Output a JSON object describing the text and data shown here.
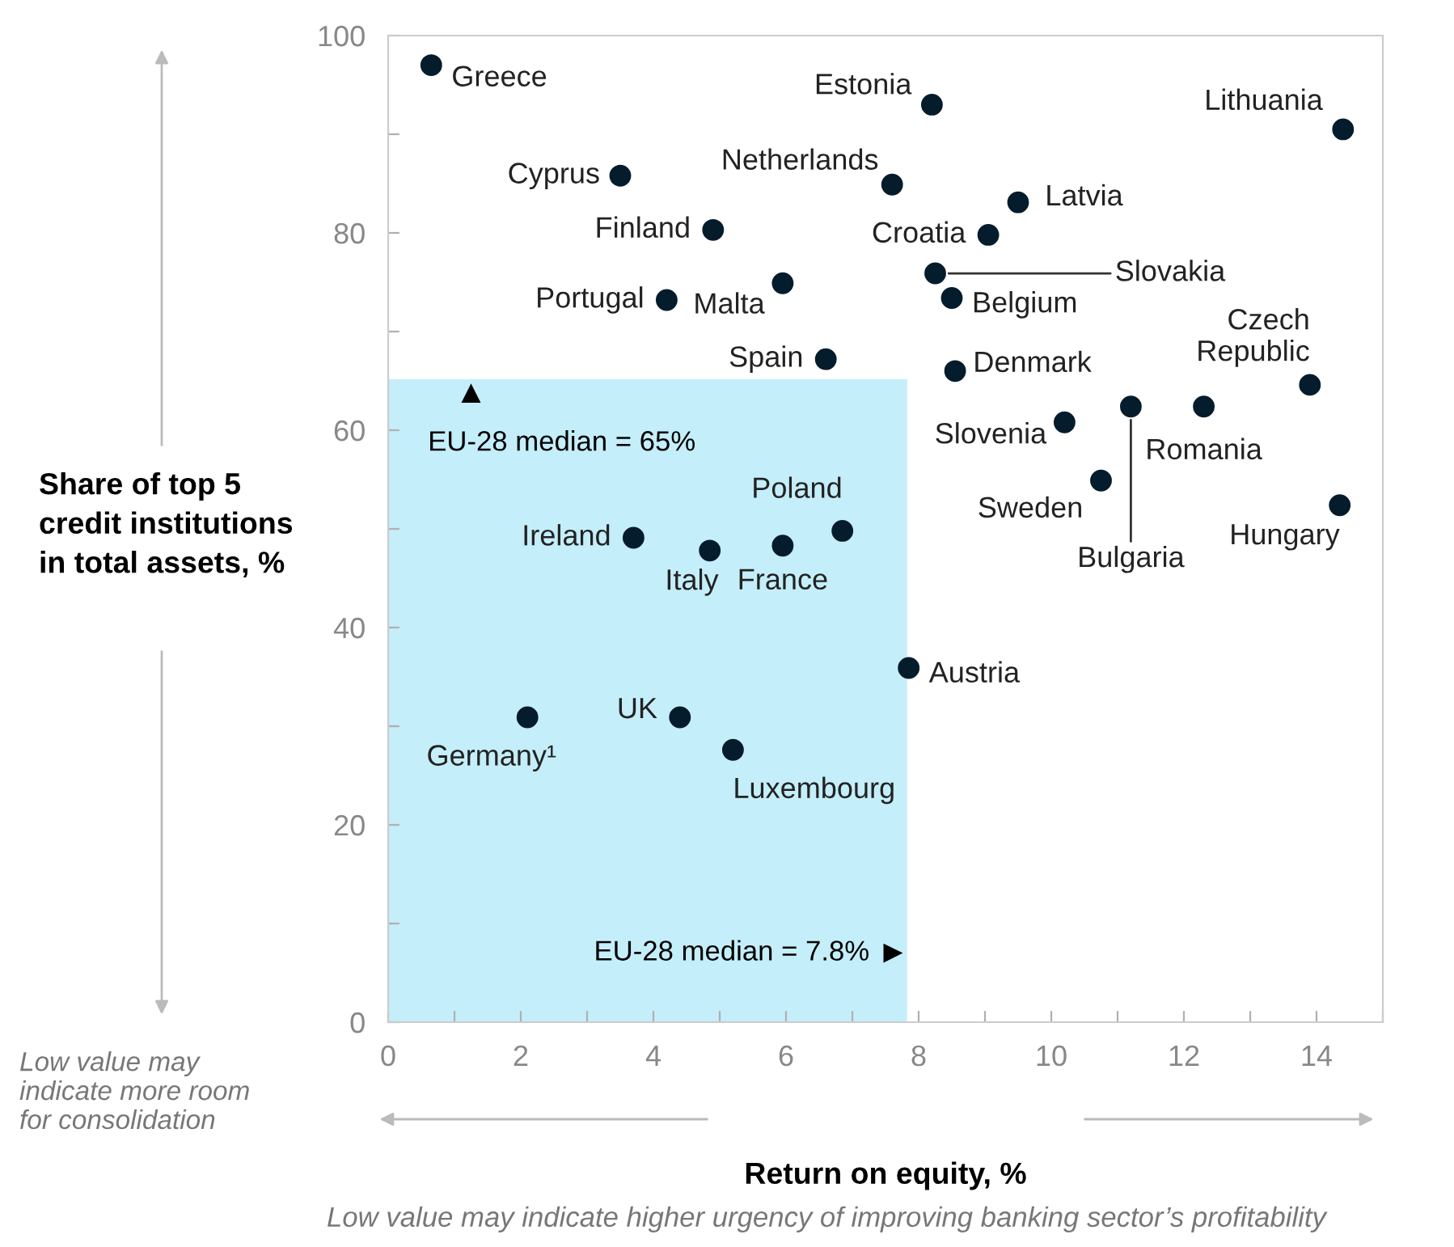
{
  "chart_data": {
    "type": "scatter",
    "xlabel": "Return on equity, %",
    "ylabel": "Share of top 5 credit institutions in total assets, %",
    "xlim": [
      0,
      15
    ],
    "ylim": [
      0,
      100
    ],
    "xticks": [
      0,
      {
        "value": 1,
        "label": null
      },
      2,
      {
        "value": 3,
        "label": null
      },
      4,
      {
        "value": 5,
        "label": null
      },
      6,
      {
        "value": 7,
        "label": null
      },
      8,
      {
        "value": 9,
        "label": null
      },
      10,
      {
        "value": 11,
        "label": null
      },
      12,
      {
        "value": 13,
        "label": null
      },
      14,
      {
        "value": 15,
        "label": null
      }
    ],
    "yticks": [
      0,
      {
        "value": 10,
        "label": null
      },
      20,
      {
        "value": 30,
        "label": null
      },
      40,
      {
        "value": 50,
        "label": null
      },
      60,
      {
        "value": 70,
        "label": null
      },
      80,
      {
        "value": 90,
        "label": null
      },
      100
    ],
    "grid": false,
    "legend": false,
    "marker": "circle",
    "series": [
      {
        "name": "Greece",
        "color": "#051c2c",
        "x": [
          0.65
        ],
        "values": [
          97
        ]
      },
      {
        "name": "Estonia",
        "color": "#051c2c",
        "x": [
          8.2
        ],
        "values": [
          93
        ]
      },
      {
        "name": "Lithuania",
        "color": "#051c2c",
        "x": [
          14.4
        ],
        "values": [
          90.5
        ]
      },
      {
        "name": "Cyprus",
        "color": "#051c2c",
        "x": [
          3.5
        ],
        "values": [
          85.8
        ]
      },
      {
        "name": "Netherlands",
        "color": "#051c2c",
        "x": [
          7.6
        ],
        "values": [
          84.9
        ]
      },
      {
        "name": "Latvia",
        "color": "#051c2c",
        "x": [
          9.5
        ],
        "values": [
          83.1
        ]
      },
      {
        "name": "Finland",
        "color": "#051c2c",
        "x": [
          4.9
        ],
        "values": [
          80.3
        ]
      },
      {
        "name": "Croatia",
        "color": "#051c2c",
        "x": [
          9.05
        ],
        "values": [
          79.8
        ]
      },
      {
        "name": "Slovakia",
        "color": "#051c2c",
        "x": [
          8.25
        ],
        "values": [
          75.9
        ]
      },
      {
        "name": "Portugal",
        "color": "#051c2c",
        "x": [
          4.2
        ],
        "values": [
          73.2
        ]
      },
      {
        "name": "Malta",
        "color": "#051c2c",
        "x": [
          5.95
        ],
        "values": [
          74.9
        ]
      },
      {
        "name": "Belgium",
        "color": "#051c2c",
        "x": [
          8.5
        ],
        "values": [
          73.4
        ]
      },
      {
        "name": "Spain",
        "color": "#051c2c",
        "x": [
          6.6
        ],
        "values": [
          67.2
        ]
      },
      {
        "name": "Denmark",
        "color": "#051c2c",
        "x": [
          8.55
        ],
        "values": [
          66
        ]
      },
      {
        "name": "Czech\nRepublic",
        "color": "#051c2c",
        "x": [
          13.9
        ],
        "values": [
          64.6
        ]
      },
      {
        "name": "Bulgaria",
        "color": "#051c2c",
        "x": [
          11.2
        ],
        "values": [
          62.4
        ]
      },
      {
        "name": "Romania",
        "color": "#051c2c",
        "x": [
          12.3
        ],
        "values": [
          62.4
        ]
      },
      {
        "name": "Slovenia",
        "color": "#051c2c",
        "x": [
          10.2
        ],
        "values": [
          60.8
        ]
      },
      {
        "name": "Sweden",
        "color": "#051c2c",
        "x": [
          10.75
        ],
        "values": [
          54.9
        ]
      },
      {
        "name": "Hungary",
        "color": "#051c2c",
        "x": [
          14.35
        ],
        "values": [
          52.4
        ]
      },
      {
        "name": "Poland",
        "color": "#051c2c",
        "x": [
          6.85
        ],
        "values": [
          49.8
        ]
      },
      {
        "name": "Ireland",
        "color": "#051c2c",
        "x": [
          3.7
        ],
        "values": [
          49.1
        ]
      },
      {
        "name": "France",
        "color": "#051c2c",
        "x": [
          5.95
        ],
        "values": [
          48.3
        ]
      },
      {
        "name": "Italy",
        "color": "#051c2c",
        "x": [
          4.85
        ],
        "values": [
          47.8
        ]
      },
      {
        "name": "Austria",
        "color": "#051c2c",
        "x": [
          7.85
        ],
        "values": [
          35.9
        ]
      },
      {
        "name": "Germany¹",
        "color": "#051c2c",
        "x": [
          2.1
        ],
        "values": [
          30.9
        ]
      },
      {
        "name": "UK",
        "color": "#051c2c",
        "x": [
          4.4
        ],
        "values": [
          30.9
        ]
      },
      {
        "name": "Luxembourg",
        "color": "#051c2c",
        "x": [
          5.2
        ],
        "values": [
          27.6
        ]
      }
    ],
    "ref_lines": [
      {
        "axis": "x",
        "value": 7.8,
        "label": "EU-28 median = 7.8%",
        "color": "#c4eefa"
      },
      {
        "axis": "y",
        "value": 65,
        "label": "EU-28 median = 65%",
        "color": "#c4eefa"
      }
    ],
    "annotations": [
      "Low value may indicate more room for consolidation",
      "Low value may indicate higher urgency of improving banking sector’s profitability"
    ]
  }
}
